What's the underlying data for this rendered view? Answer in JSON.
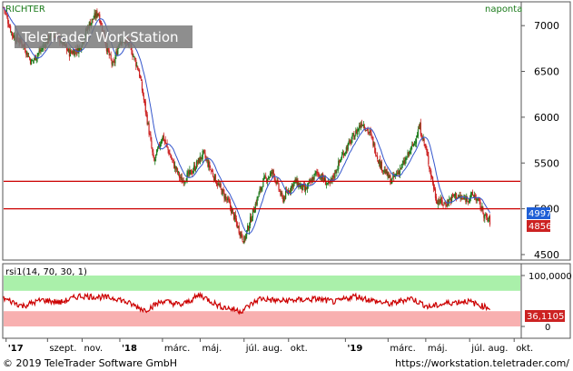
{
  "header": {
    "symbol": "RICHTER",
    "interval": "naponta",
    "watermark": "TeleTrader WorkStation"
  },
  "price_panel": {
    "y_ticks": [
      "7000",
      "6500",
      "6000",
      "5500",
      "5000",
      "4500"
    ],
    "badges": [
      {
        "text": "4997",
        "color": "#1f5fd6",
        "text_color": "#ffffff"
      },
      {
        "text": "4856",
        "color": "#cc2222",
        "text_color": "#ffffff"
      }
    ],
    "hlines": [
      5300,
      5000
    ]
  },
  "rsi_panel": {
    "label": "rsi1(14, 70, 30, 1)",
    "y_ticks": [
      "100,0000",
      "0"
    ],
    "badge": {
      "text": "36,1105",
      "color": "#cc2222",
      "text_color": "#ffffff"
    }
  },
  "x_axis": {
    "labels": [
      "'17",
      "szept.",
      "nov.",
      "'18",
      "márc.",
      "máj.",
      "júl. aug.",
      "okt.",
      "'19",
      "márc.",
      "máj.",
      "júl. aug.",
      "okt."
    ],
    "bold": [
      "'17",
      "'18",
      "'19"
    ]
  },
  "footer": {
    "copyright": "© 2019 TeleTrader Software GmbH",
    "url": "https://workstation.teletrader.com/"
  },
  "colors": {
    "up": "#1a7a1a",
    "down": "#cc2222",
    "ma": "#3355cc",
    "rsi_line": "#cc0000",
    "overbought_band": "#aaf0aa",
    "oversold_band": "#f8b0b0",
    "hline": "#cc0000"
  },
  "chart_data": [
    {
      "type": "candlestick",
      "title": "RICHTER",
      "y_range": [
        4450,
        7250
      ],
      "date_range": [
        "2017-07",
        "2019-10"
      ],
      "moving_average": true,
      "price_path": [
        [
          "2017-07-01",
          7200
        ],
        [
          "2017-07-15",
          6900
        ],
        [
          "2017-08-01",
          6800
        ],
        [
          "2017-08-15",
          6600
        ],
        [
          "2017-09-01",
          6750
        ],
        [
          "2017-09-15",
          6900
        ],
        [
          "2017-10-01",
          6850
        ],
        [
          "2017-10-15",
          6700
        ],
        [
          "2017-11-01",
          6750
        ],
        [
          "2017-11-15",
          7000
        ],
        [
          "2017-12-01",
          7150
        ],
        [
          "2017-12-15",
          6750
        ],
        [
          "2017-12-25",
          6550
        ],
        [
          "2018-01-05",
          6850
        ],
        [
          "2018-01-20",
          6800
        ],
        [
          "2018-02-05",
          6500
        ],
        [
          "2018-02-20",
          5900
        ],
        [
          "2018-03-01",
          5500
        ],
        [
          "2018-03-15",
          5800
        ],
        [
          "2018-04-01",
          5500
        ],
        [
          "2018-04-15",
          5300
        ],
        [
          "2018-05-01",
          5400
        ],
        [
          "2018-05-20",
          5600
        ],
        [
          "2018-06-10",
          5300
        ],
        [
          "2018-07-01",
          5050
        ],
        [
          "2018-07-15",
          4800
        ],
        [
          "2018-07-25",
          4650
        ],
        [
          "2018-08-10",
          5000
        ],
        [
          "2018-08-25",
          5300
        ],
        [
          "2018-09-10",
          5400
        ],
        [
          "2018-09-25",
          5100
        ],
        [
          "2018-10-15",
          5300
        ],
        [
          "2018-11-01",
          5200
        ],
        [
          "2018-11-20",
          5400
        ],
        [
          "2018-12-10",
          5250
        ],
        [
          "2019-01-01",
          5600
        ],
        [
          "2019-01-15",
          5750
        ],
        [
          "2019-02-01",
          5950
        ],
        [
          "2019-02-15",
          5800
        ],
        [
          "2019-03-01",
          5500
        ],
        [
          "2019-03-20",
          5300
        ],
        [
          "2019-04-10",
          5500
        ],
        [
          "2019-04-25",
          5700
        ],
        [
          "2019-05-05",
          5900
        ],
        [
          "2019-05-15",
          5650
        ],
        [
          "2019-06-01",
          5100
        ],
        [
          "2019-06-15",
          5050
        ],
        [
          "2019-07-01",
          5150
        ],
        [
          "2019-07-15",
          5100
        ],
        [
          "2019-08-01",
          5150
        ],
        [
          "2019-08-10",
          5050
        ],
        [
          "2019-08-20",
          4900
        ],
        [
          "2019-08-28",
          4856
        ]
      ],
      "last_close": 4856,
      "ma_last": 4997
    },
    {
      "type": "line",
      "title": "rsi1(14, 70, 30, 1)",
      "y_range": [
        0,
        100
      ],
      "bands": {
        "overbought": 70,
        "oversold": 30
      },
      "last_value": 36.1105,
      "rsi_path": [
        [
          "2017-07-01",
          55
        ],
        [
          "2017-08-01",
          40
        ],
        [
          "2017-09-01",
          52
        ],
        [
          "2017-10-01",
          47
        ],
        [
          "2017-11-01",
          60
        ],
        [
          "2017-12-01",
          58
        ],
        [
          "2018-01-01",
          55
        ],
        [
          "2018-02-15",
          32
        ],
        [
          "2018-03-15",
          50
        ],
        [
          "2018-04-15",
          42
        ],
        [
          "2018-05-15",
          62
        ],
        [
          "2018-06-15",
          40
        ],
        [
          "2018-07-20",
          30
        ],
        [
          "2018-08-20",
          55
        ],
        [
          "2018-09-20",
          50
        ],
        [
          "2018-10-20",
          52
        ],
        [
          "2018-11-20",
          54
        ],
        [
          "2018-12-20",
          48
        ],
        [
          "2019-01-20",
          60
        ],
        [
          "2019-02-20",
          50
        ],
        [
          "2019-03-20",
          44
        ],
        [
          "2019-04-20",
          56
        ],
        [
          "2019-05-20",
          38
        ],
        [
          "2019-06-20",
          46
        ],
        [
          "2019-07-20",
          50
        ],
        [
          "2019-08-15",
          40
        ],
        [
          "2019-08-28",
          36.1105
        ]
      ]
    }
  ]
}
